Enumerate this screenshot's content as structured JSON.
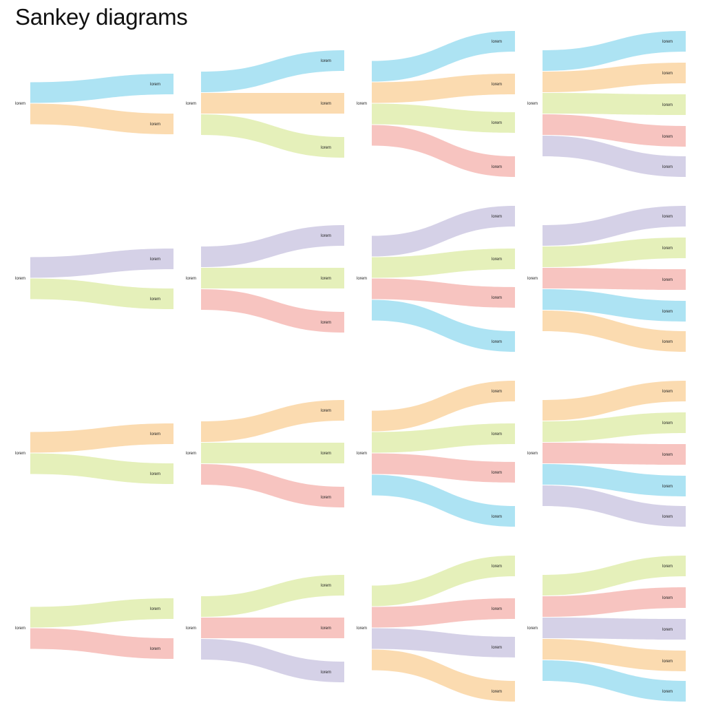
{
  "title": "Sankey diagrams",
  "colors": {
    "blue": "#ade3f3",
    "orange": "#fbdbb0",
    "green": "#e5f0ba",
    "red": "#f7c4c0",
    "purple": "#d5d1e7"
  },
  "diagrams": [
    {
      "row": 1,
      "source_label": "lorem",
      "flows": [
        {
          "color": "blue",
          "label": "lorem"
        },
        {
          "color": "orange",
          "label": "lorem"
        }
      ]
    },
    {
      "row": 1,
      "source_label": "lorem",
      "flows": [
        {
          "color": "blue",
          "label": "lorem"
        },
        {
          "color": "orange",
          "label": "lorem"
        },
        {
          "color": "green",
          "label": "lorem"
        }
      ]
    },
    {
      "row": 1,
      "source_label": "lorem",
      "flows": [
        {
          "color": "blue",
          "label": "lorem"
        },
        {
          "color": "orange",
          "label": "lorem"
        },
        {
          "color": "green",
          "label": "lorem"
        },
        {
          "color": "red",
          "label": "lorem"
        }
      ]
    },
    {
      "row": 1,
      "source_label": "lorem",
      "flows": [
        {
          "color": "blue",
          "label": "lorem"
        },
        {
          "color": "orange",
          "label": "lorem"
        },
        {
          "color": "green",
          "label": "lorem"
        },
        {
          "color": "red",
          "label": "lorem"
        },
        {
          "color": "purple",
          "label": "lorem"
        }
      ]
    },
    {
      "row": 2,
      "source_label": "lorem",
      "flows": [
        {
          "color": "purple",
          "label": "lorem"
        },
        {
          "color": "green",
          "label": "lorem"
        }
      ]
    },
    {
      "row": 2,
      "source_label": "lorem",
      "flows": [
        {
          "color": "purple",
          "label": "lorem"
        },
        {
          "color": "green",
          "label": "lorem"
        },
        {
          "color": "red",
          "label": "lorem"
        }
      ]
    },
    {
      "row": 2,
      "source_label": "lorem",
      "flows": [
        {
          "color": "purple",
          "label": "lorem"
        },
        {
          "color": "green",
          "label": "lorem"
        },
        {
          "color": "red",
          "label": "lorem"
        },
        {
          "color": "blue",
          "label": "lorem"
        }
      ]
    },
    {
      "row": 2,
      "source_label": "lorem",
      "flows": [
        {
          "color": "purple",
          "label": "lorem"
        },
        {
          "color": "green",
          "label": "lorem"
        },
        {
          "color": "red",
          "label": "lorem"
        },
        {
          "color": "blue",
          "label": "lorem"
        },
        {
          "color": "orange",
          "label": "lorem"
        }
      ]
    },
    {
      "row": 3,
      "source_label": "lorem",
      "flows": [
        {
          "color": "orange",
          "label": "lorem"
        },
        {
          "color": "green",
          "label": "lorem"
        }
      ]
    },
    {
      "row": 3,
      "source_label": "lorem",
      "flows": [
        {
          "color": "orange",
          "label": "lorem"
        },
        {
          "color": "green",
          "label": "lorem"
        },
        {
          "color": "red",
          "label": "lorem"
        }
      ]
    },
    {
      "row": 3,
      "source_label": "lorem",
      "flows": [
        {
          "color": "orange",
          "label": "lorem"
        },
        {
          "color": "green",
          "label": "lorem"
        },
        {
          "color": "red",
          "label": "lorem"
        },
        {
          "color": "blue",
          "label": "lorem"
        }
      ]
    },
    {
      "row": 3,
      "source_label": "lorem",
      "flows": [
        {
          "color": "orange",
          "label": "lorem"
        },
        {
          "color": "green",
          "label": "lorem"
        },
        {
          "color": "red",
          "label": "lorem"
        },
        {
          "color": "blue",
          "label": "lorem"
        },
        {
          "color": "purple",
          "label": "lorem"
        }
      ]
    },
    {
      "row": 4,
      "source_label": "lorem",
      "flows": [
        {
          "color": "green",
          "label": "lorem"
        },
        {
          "color": "red",
          "label": "lorem"
        }
      ]
    },
    {
      "row": 4,
      "source_label": "lorem",
      "flows": [
        {
          "color": "green",
          "label": "lorem"
        },
        {
          "color": "red",
          "label": "lorem"
        },
        {
          "color": "purple",
          "label": "lorem"
        }
      ]
    },
    {
      "row": 4,
      "source_label": "lorem",
      "flows": [
        {
          "color": "green",
          "label": "lorem"
        },
        {
          "color": "red",
          "label": "lorem"
        },
        {
          "color": "purple",
          "label": "lorem"
        },
        {
          "color": "orange",
          "label": "lorem"
        }
      ]
    },
    {
      "row": 4,
      "source_label": "lorem",
      "flows": [
        {
          "color": "green",
          "label": "lorem"
        },
        {
          "color": "red",
          "label": "lorem"
        },
        {
          "color": "purple",
          "label": "lorem"
        },
        {
          "color": "orange",
          "label": "lorem"
        },
        {
          "color": "blue",
          "label": "lorem"
        }
      ]
    }
  ]
}
